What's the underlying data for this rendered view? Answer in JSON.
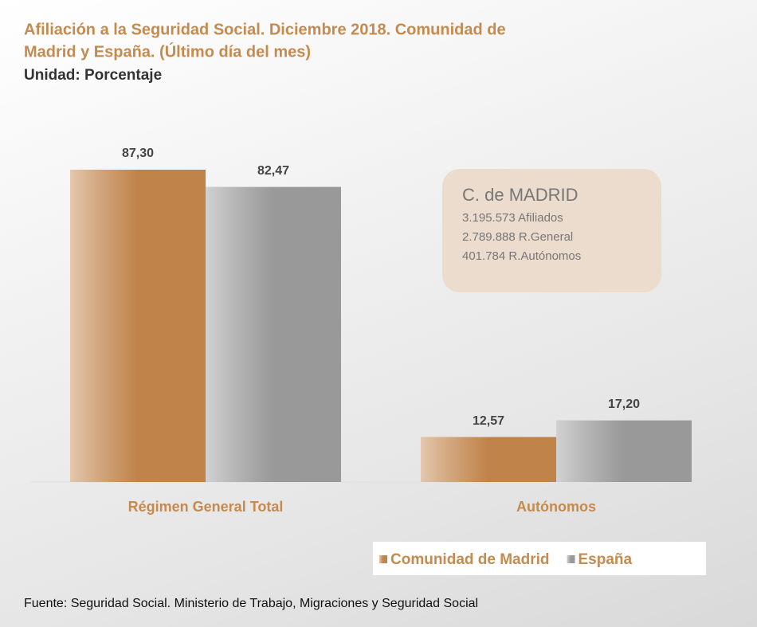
{
  "chart_data": {
    "type": "bar",
    "title": [
      "Afiliación a la Seguridad Social. Diciembre 2018. Comunidad de",
      "Madrid y España. (Último día del mes)"
    ],
    "subtitle": "Unidad: Porcentaje",
    "categories": [
      "Régimen General Total",
      "Autónomos"
    ],
    "series": [
      {
        "name": "Comunidad de Madrid",
        "color": "#c0834a",
        "values": [
          87.3,
          12.57
        ],
        "value_labels": [
          "87,30",
          "12,57"
        ]
      },
      {
        "name": "España",
        "color": "#999999",
        "values": [
          82.47,
          17.2
        ],
        "value_labels": [
          "82,47",
          "17,20"
        ]
      }
    ],
    "ylim": [
      0,
      100
    ],
    "annotation": {
      "title": "C. de MADRID",
      "lines": [
        "3.195.573 Afiliados",
        "2.789.888 R.General",
        "401.784 R.Autónomos"
      ]
    },
    "source": "Fuente: Seguridad Social. Ministerio de Trabajo, Migraciones y Seguridad Social"
  }
}
